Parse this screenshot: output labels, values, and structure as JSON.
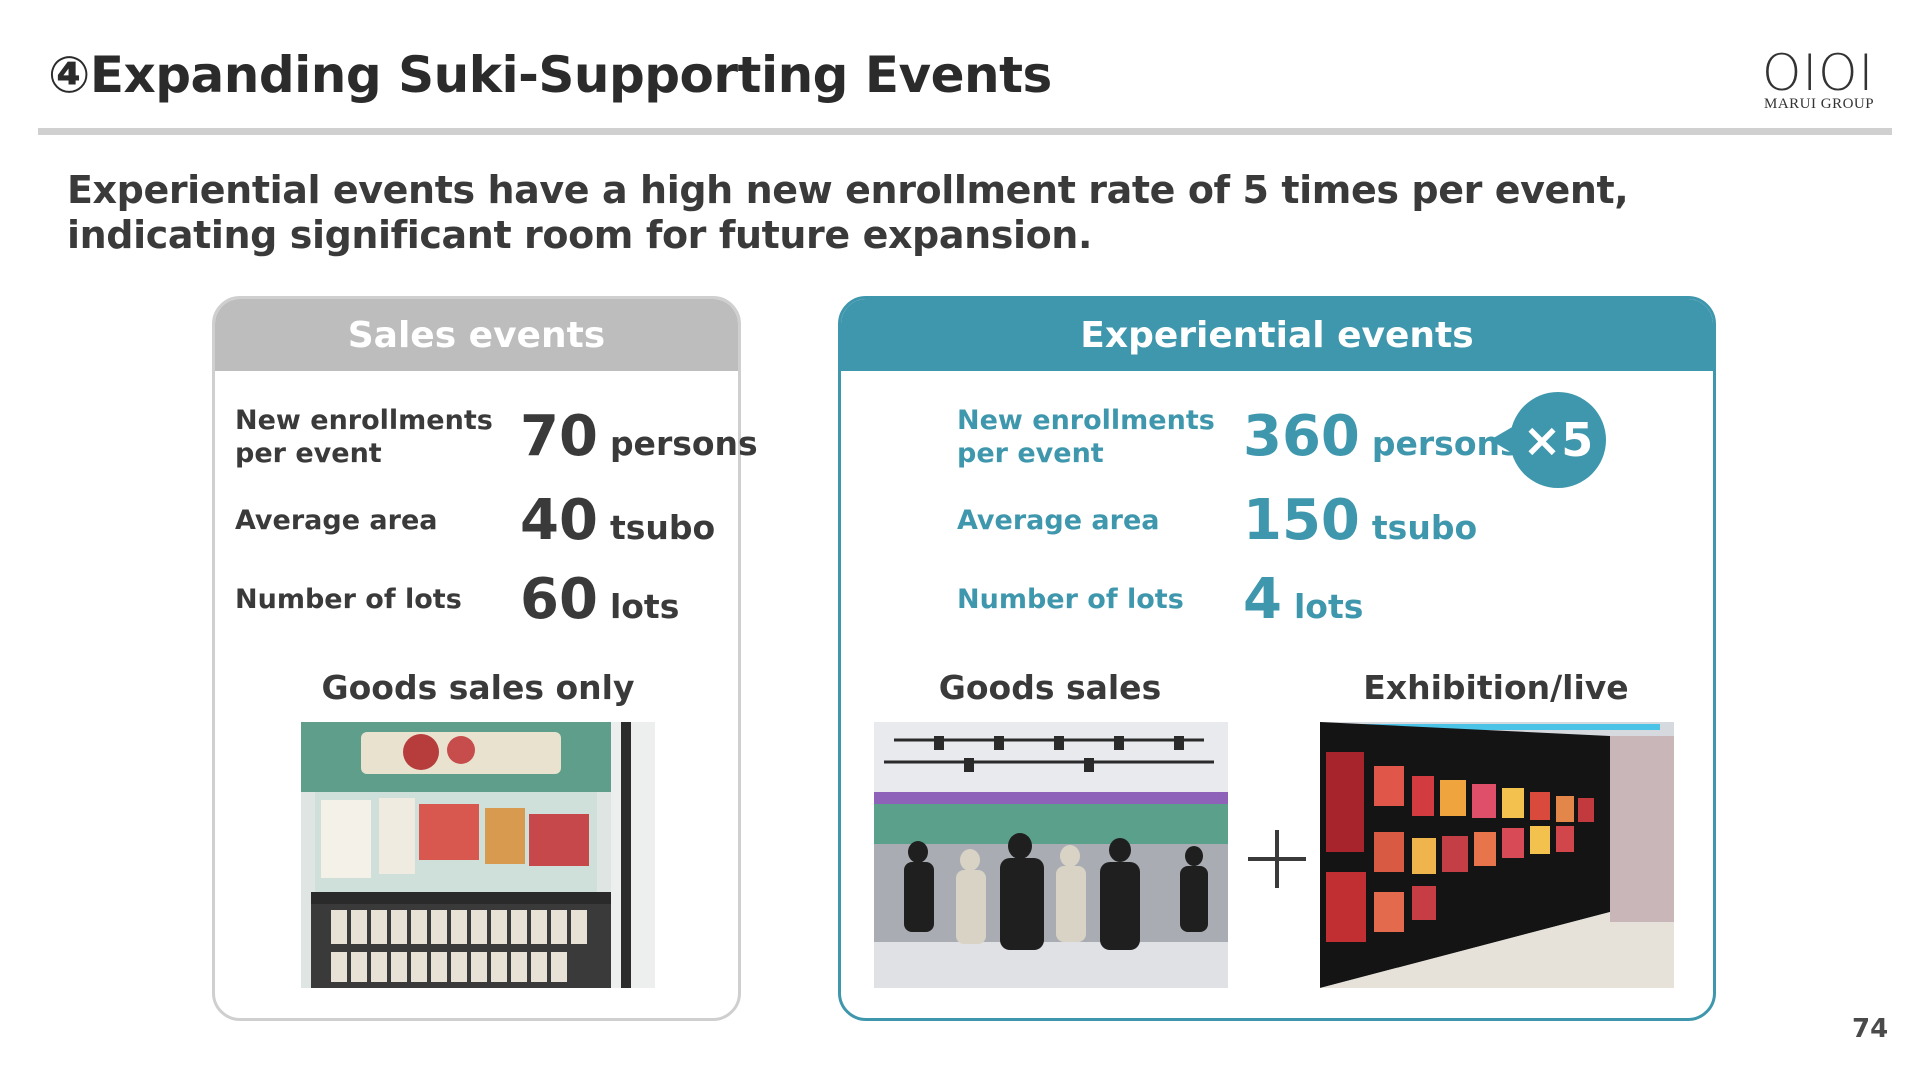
{
  "slide": {
    "title": "④Expanding Suki-Supporting Events",
    "subtitle": "Experiential events have a high new enrollment rate of 5 times per event, indicating significant room for future expansion.",
    "page_number": "74"
  },
  "logo": {
    "mark": "OIOI",
    "text": "MARUI GROUP"
  },
  "sales_panel": {
    "header": "Sales events",
    "metrics": [
      {
        "label": "New enrollments\nper event",
        "value": "70",
        "unit": "persons"
      },
      {
        "label": "Average area",
        "value": "40",
        "unit": "tsubo"
      },
      {
        "label": "Number of lots",
        "value": "60",
        "unit": "lots"
      }
    ],
    "caption": "Goods sales only"
  },
  "experiential_panel": {
    "header": "Experiential events",
    "metrics": [
      {
        "label": "New enrollments\nper event",
        "value": "360",
        "unit": "persons"
      },
      {
        "label": "Average area",
        "value": "150",
        "unit": "tsubo"
      },
      {
        "label": "Number of lots",
        "value": "4",
        "unit": "lots"
      }
    ],
    "badge": "×5",
    "captions": [
      "Goods sales",
      "Exhibition/live"
    ]
  },
  "colors": {
    "accent": "#3f97ad",
    "sales_gray": "#bdbdbd",
    "text_dark": "#3a3a3a"
  }
}
